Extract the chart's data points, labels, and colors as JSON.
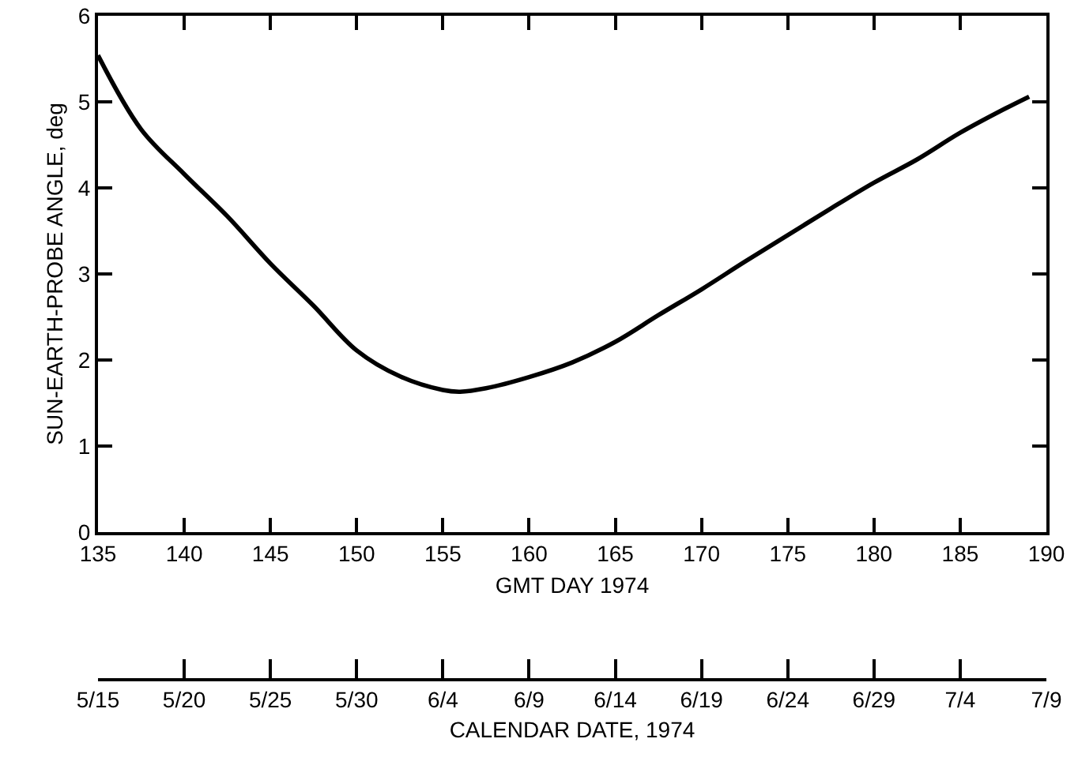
{
  "chart_data": {
    "type": "line",
    "xlabel": "GMT DAY 1974",
    "ylabel": "SUN-EARTH-PROBE ANGLE, deg",
    "x2label": "CALENDAR DATE, 1974",
    "x": [
      135,
      137.5,
      140,
      142.5,
      145,
      147.5,
      150,
      152.5,
      155,
      156,
      157.5,
      160,
      162.5,
      165,
      167.5,
      170,
      172.5,
      175,
      177.5,
      180,
      182.5,
      185,
      187.5,
      189
    ],
    "series": [
      {
        "color": "#000000",
        "values": [
          5.54,
          4.68,
          4.16,
          3.67,
          3.12,
          2.63,
          2.11,
          1.81,
          1.65,
          1.63,
          1.67,
          1.8,
          1.97,
          2.21,
          2.52,
          2.82,
          3.14,
          3.45,
          3.76,
          4.06,
          4.33,
          4.64,
          4.91,
          5.06
        ]
      }
    ],
    "xlim": [
      135,
      190
    ],
    "xticks": [
      135,
      140,
      145,
      150,
      155,
      160,
      165,
      170,
      175,
      180,
      185,
      190
    ],
    "ylim": [
      0,
      6
    ],
    "yticks": [
      0,
      1,
      2,
      3,
      4,
      5,
      6
    ],
    "x2lim": [
      "1974-05-15",
      "1974-07-09"
    ],
    "x2ticks": [
      {
        "value": "1974-05-15",
        "label": "5/15"
      },
      {
        "value": "1974-05-20",
        "label": "5/20"
      },
      {
        "value": "1974-05-25",
        "label": "5/25"
      },
      {
        "value": "1974-05-30",
        "label": "5/30"
      },
      {
        "value": "1974-06-04",
        "label": "6/4"
      },
      {
        "value": "1974-06-09",
        "label": "6/9"
      },
      {
        "value": "1974-06-14",
        "label": "6/14"
      },
      {
        "value": "1974-06-19",
        "label": "6/19"
      },
      {
        "value": "1974-06-24",
        "label": "6/24"
      },
      {
        "value": "1974-06-29",
        "label": "6/29"
      },
      {
        "value": "1974-07-04",
        "label": "7/4"
      },
      {
        "value": "1974-07-09",
        "label": "7/9"
      }
    ],
    "grid": false,
    "marker": "none",
    "line_style": "solid"
  }
}
